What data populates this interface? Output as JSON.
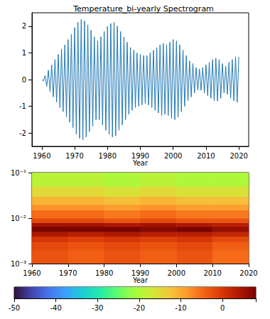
{
  "chart_data": [
    {
      "type": "line",
      "title": "Temperature_bi-yearly Spectrogram",
      "x_label": "Year",
      "color": "#1f77b4",
      "x": [
        1960,
        1960.5,
        1961,
        1961.5,
        1962,
        1962.5,
        1963,
        1963.5,
        1964,
        1964.5,
        1965,
        1965.5,
        1966,
        1966.5,
        1967,
        1967.5,
        1968,
        1968.5,
        1969,
        1969.5,
        1970,
        1970.5,
        1971,
        1971.5,
        1972,
        1972.5,
        1973,
        1973.5,
        1974,
        1974.5,
        1975,
        1975.5,
        1976,
        1976.5,
        1977,
        1977.5,
        1978,
        1978.5,
        1979,
        1979.5,
        1980,
        1980.5,
        1981,
        1981.5,
        1982,
        1982.5,
        1983,
        1983.5,
        1984,
        1984.5,
        1985,
        1985.5,
        1986,
        1986.5,
        1987,
        1987.5,
        1988,
        1988.5,
        1989,
        1989.5,
        1990,
        1990.5,
        1991,
        1991.5,
        1992,
        1992.5,
        1993,
        1993.5,
        1994,
        1994.5,
        1995,
        1995.5,
        1996,
        1996.5,
        1997,
        1997.5,
        1998,
        1998.5,
        1999,
        1999.5,
        2000,
        2000.5,
        2001,
        2001.5,
        2002,
        2002.5,
        2003,
        2003.5,
        2004,
        2004.5,
        2005,
        2005.5,
        2006,
        2006.5,
        2007,
        2007.5,
        2008,
        2008.5,
        2009,
        2009.5,
        2010,
        2010.5,
        2011,
        2011.5,
        2012,
        2012.5,
        2013,
        2013.5,
        2014,
        2014.5,
        2015,
        2015.5,
        2016,
        2016.5,
        2017,
        2017.5,
        2018,
        2018.5,
        2019,
        2019.5,
        2020
      ],
      "values": [
        0.0,
        -0.05,
        0.15,
        -0.25,
        0.35,
        -0.45,
        0.55,
        -0.65,
        0.75,
        -0.85,
        0.95,
        -1.05,
        1.15,
        -1.2,
        1.3,
        -1.4,
        1.5,
        -1.6,
        1.7,
        -1.8,
        1.95,
        -2.05,
        2.15,
        -2.2,
        2.25,
        -2.25,
        2.2,
        -2.15,
        2.05,
        -1.95,
        1.85,
        -1.75,
        1.6,
        -1.5,
        1.45,
        -1.5,
        1.6,
        -1.7,
        1.8,
        -1.9,
        2.0,
        -2.05,
        2.1,
        -2.15,
        2.15,
        -2.1,
        2.0,
        -1.9,
        1.8,
        -1.7,
        1.6,
        -1.5,
        1.4,
        -1.3,
        1.2,
        -1.15,
        1.1,
        -1.05,
        1.0,
        -1.0,
        0.95,
        -0.95,
        0.9,
        -0.9,
        0.9,
        -0.95,
        1.0,
        -1.05,
        1.1,
        -1.15,
        1.2,
        -1.25,
        1.3,
        -1.35,
        1.35,
        -1.3,
        1.3,
        -1.35,
        1.4,
        -1.45,
        1.5,
        -1.5,
        1.45,
        -1.4,
        1.3,
        -1.2,
        1.1,
        -1.0,
        0.9,
        -0.8,
        0.7,
        -0.65,
        0.6,
        -0.5,
        0.45,
        -0.4,
        0.4,
        -0.4,
        0.45,
        -0.5,
        0.55,
        -0.6,
        0.65,
        -0.7,
        0.75,
        -0.8,
        0.8,
        -0.8,
        0.75,
        -0.7,
        0.6,
        -0.5,
        0.5,
        -0.55,
        0.65,
        -0.7,
        0.75,
        -0.8,
        0.85,
        -0.85,
        0.85
      ],
      "xlim": [
        1957,
        2023
      ],
      "xticks": [
        1960,
        1970,
        1980,
        1990,
        2000,
        2010,
        2020
      ],
      "ylim": [
        -2.5,
        2.5
      ],
      "yticks": [
        -2,
        -1,
        0,
        1,
        2
      ]
    },
    {
      "type": "heatmap",
      "x_label": "Year",
      "log": "y",
      "x_bins": [
        1960,
        1970,
        1980,
        1990,
        2000,
        2010,
        2020
      ],
      "y_bins": [
        0.001,
        0.002,
        0.003,
        0.004,
        0.005,
        0.0065,
        0.008,
        0.01,
        0.015,
        0.02,
        0.03,
        0.05,
        0.1
      ],
      "cells": [
        [
          -3,
          -4,
          -3,
          -4,
          -3,
          -5
        ],
        [
          -2,
          -3,
          -2,
          -3,
          -2,
          -4
        ],
        [
          0,
          -1,
          0,
          -1,
          0,
          -2
        ],
        [
          4,
          3,
          4,
          3,
          3,
          2
        ],
        [
          8,
          8,
          8,
          7,
          8,
          6
        ],
        [
          5,
          5,
          4,
          5,
          4,
          3
        ],
        [
          -2,
          -2,
          -3,
          -2,
          -3,
          -3
        ],
        [
          -5,
          -5,
          -6,
          -5,
          -6,
          -6
        ],
        [
          -8,
          -8,
          -9,
          -8,
          -9,
          -9
        ],
        [
          -11,
          -11,
          -12,
          -11,
          -12,
          -12
        ],
        [
          -15,
          -15,
          -16,
          -15,
          -16,
          -16
        ],
        [
          -19,
          -19,
          -20,
          -19,
          -20,
          -20
        ]
      ],
      "xlim": [
        1960,
        2020
      ],
      "xticks": [
        1960,
        1970,
        1980,
        1990,
        2000,
        2010,
        2020
      ],
      "ylim": [
        0.001,
        0.1
      ],
      "yticks": [
        {
          "value": 0.001,
          "label": "10⁻³"
        },
        {
          "value": 0.01,
          "label": "10⁻²"
        },
        {
          "value": 0.1,
          "label": "10⁻¹"
        }
      ],
      "colorbar_range": [
        -50,
        8
      ],
      "colorbar_ticks": [
        -50,
        -40,
        -30,
        -20,
        -10,
        0
      ]
    }
  ]
}
